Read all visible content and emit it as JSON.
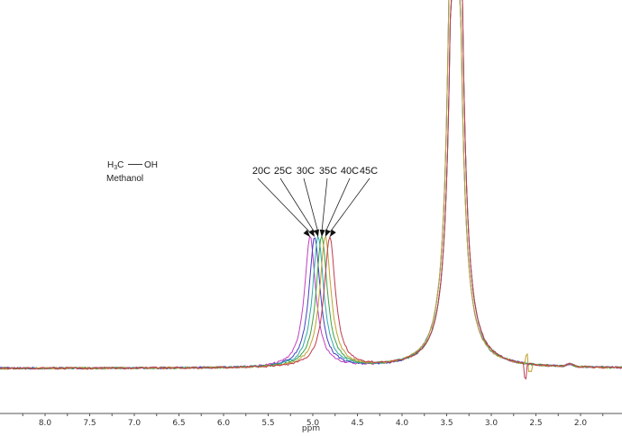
{
  "chart_data": {
    "type": "line",
    "title": "",
    "xlabel": "ppm",
    "ylabel": "",
    "x_reversed": true,
    "xlim": [
      8.4,
      1.55
    ],
    "x_ticks": [
      8.0,
      7.5,
      7.0,
      6.5,
      6.0,
      5.5,
      5.0,
      4.5,
      4.0,
      3.5,
      3.0,
      2.5,
      2.0
    ],
    "x_tick_labels": [
      "8.0",
      "7.5",
      "7.0",
      "6.5",
      "6.0",
      "5.5",
      "5.0",
      "4.5",
      "4.0",
      "3.5",
      "3.0",
      "2.5",
      "2.0"
    ],
    "grid": false,
    "legend": "none (arrow annotations)",
    "molecule": {
      "formula_left": "H3C",
      "formula_right": "OH",
      "name": "Methanol"
    },
    "series": [
      {
        "name": "20C",
        "color": "#c040c0",
        "oh_peak_ppm": 5.03,
        "ch3_peak_ppm": 3.41
      },
      {
        "name": "25C",
        "color": "#4040c0",
        "oh_peak_ppm": 4.98,
        "ch3_peak_ppm": 3.41
      },
      {
        "name": "30C",
        "color": "#30a8a8",
        "oh_peak_ppm": 4.94,
        "ch3_peak_ppm": 3.41
      },
      {
        "name": "35C",
        "color": "#40a040",
        "oh_peak_ppm": 4.9,
        "ch3_peak_ppm": 3.41
      },
      {
        "name": "40C",
        "color": "#c0a030",
        "oh_peak_ppm": 4.86,
        "ch3_peak_ppm": 3.41
      },
      {
        "name": "45C",
        "color": "#c03a50",
        "oh_peak_ppm": 4.81,
        "ch3_peak_ppm": 3.41
      }
    ],
    "annotations": [
      "20C",
      "25C",
      "30C",
      "35C",
      "40C",
      "45C"
    ]
  },
  "axis": {
    "label": "ppm"
  },
  "molecule": {
    "h3c": "H",
    "sub3": "3",
    "c": "C",
    "oh": "OH",
    "name": "Methanol"
  },
  "labels": [
    "20C",
    "25C",
    "30C",
    "35C",
    "40C",
    "45C"
  ]
}
